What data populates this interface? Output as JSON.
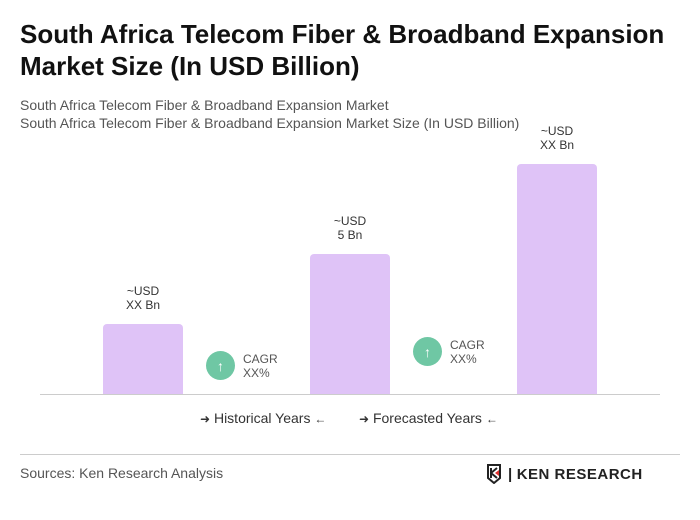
{
  "title": "South Africa Telecom Fiber & Broadband Expansion Market Size (In USD Billion)",
  "subtitle_1": "South Africa Telecom Fiber & Broadband Expansion Market",
  "subtitle_2": "South Africa Telecom Fiber & Broadband Expansion Market Size (In USD Billion)",
  "chart_data": {
    "type": "bar",
    "title": "South Africa Telecom Fiber & Broadband Expansion Market Size (In USD Billion)",
    "categories": [
      "",
      "",
      ""
    ],
    "values": [
      2.5,
      5,
      8.2
    ],
    "data_labels": [
      {
        "line1": "~USD",
        "line2": "XX Bn"
      },
      {
        "line1": "~USD",
        "line2": "5 Bn"
      },
      {
        "line1": "~USD",
        "line2": "XX Bn"
      }
    ],
    "bar_color": "#dfc3f7",
    "grid": false,
    "annotations": [
      {
        "line1": "CAGR",
        "line2": "XX%",
        "icon": "arrow-up-icon",
        "color": "#6fc7a4"
      },
      {
        "line1": "CAGR",
        "line2": "XX%",
        "icon": "arrow-up-icon",
        "color": "#6fc7a4"
      }
    ],
    "legend": {
      "historical": "Historical Years",
      "forecasted": "Forecasted Years"
    }
  },
  "sources": "Sources: Ken Research Analysis",
  "logo_text": "KEN RESEARCH"
}
